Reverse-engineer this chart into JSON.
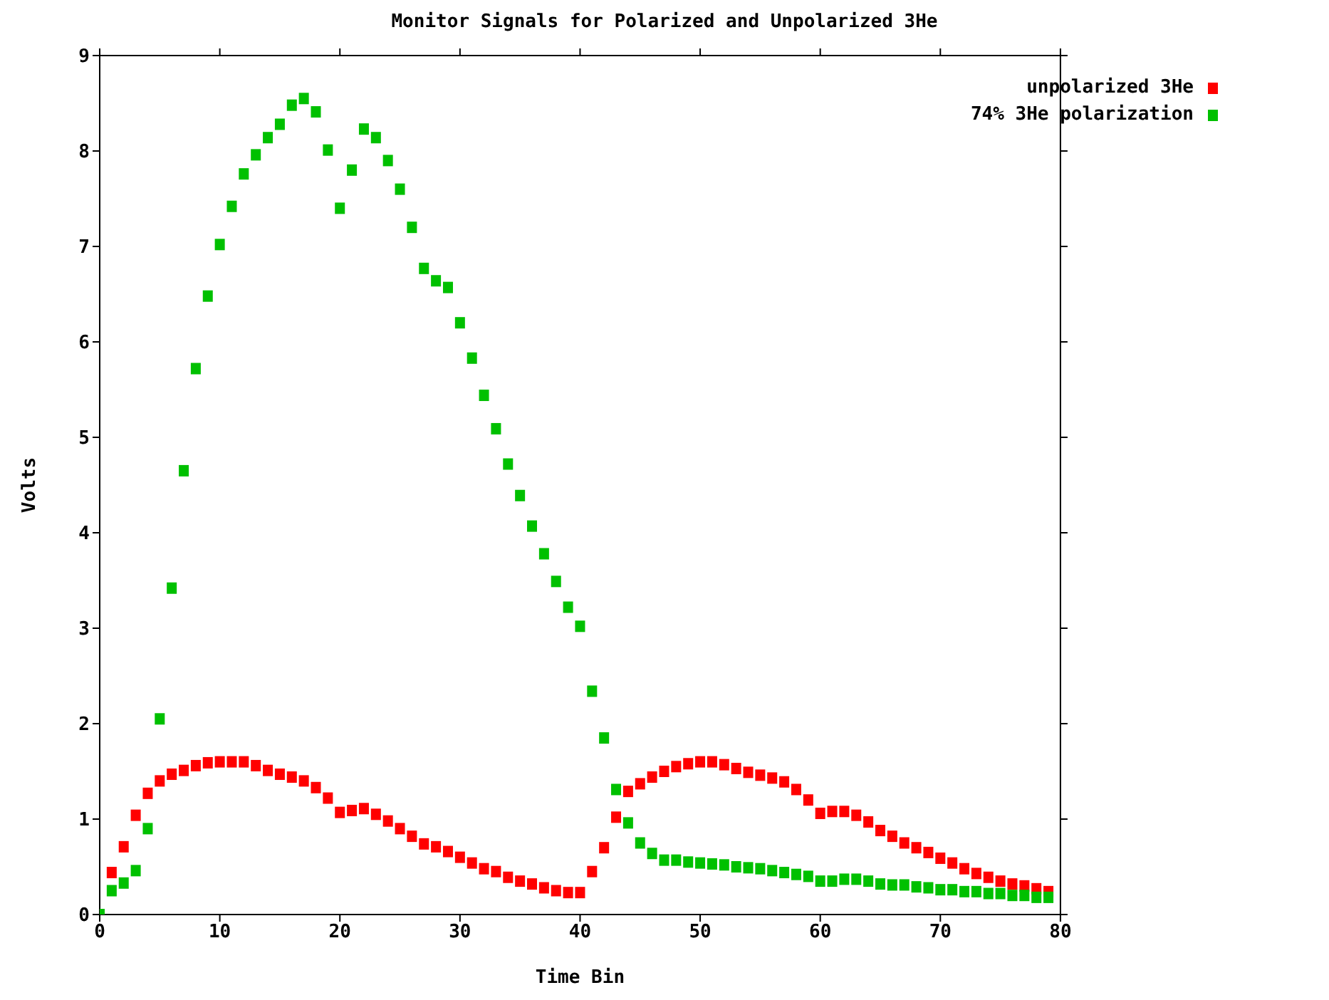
{
  "chart_data": {
    "type": "scatter",
    "title": "Monitor Signals for Polarized and Unpolarized 3He",
    "xlabel": "Time Bin",
    "ylabel": "Volts",
    "x": [
      0,
      1,
      2,
      3,
      4,
      5,
      6,
      7,
      8,
      9,
      10,
      11,
      12,
      13,
      14,
      15,
      16,
      17,
      18,
      19,
      20,
      21,
      22,
      23,
      24,
      25,
      26,
      27,
      28,
      29,
      30,
      31,
      32,
      33,
      34,
      35,
      36,
      37,
      38,
      39,
      40,
      41,
      42,
      43,
      44,
      45,
      46,
      47,
      48,
      49,
      50,
      51,
      52,
      53,
      54,
      55,
      56,
      57,
      58,
      59,
      60,
      61,
      62,
      63,
      64,
      65,
      66,
      67,
      68,
      69,
      70,
      71,
      72,
      73,
      74,
      75,
      76,
      77,
      78,
      79
    ],
    "series": [
      {
        "name": "unpolarized 3He",
        "color": "#ff0000",
        "values": [
          null,
          0.44,
          0.71,
          1.04,
          1.27,
          1.4,
          1.47,
          1.51,
          1.56,
          1.59,
          1.6,
          1.6,
          1.6,
          1.56,
          1.51,
          1.47,
          1.44,
          1.4,
          1.33,
          1.22,
          1.07,
          1.09,
          1.11,
          1.05,
          0.98,
          0.9,
          0.82,
          0.74,
          0.71,
          0.66,
          0.6,
          0.54,
          0.48,
          0.45,
          0.39,
          0.35,
          0.32,
          0.28,
          0.25,
          0.23,
          0.23,
          0.45,
          0.7,
          1.02,
          1.29,
          1.37,
          1.44,
          1.5,
          1.55,
          1.58,
          1.6,
          1.6,
          1.57,
          1.53,
          1.49,
          1.46,
          1.43,
          1.39,
          1.31,
          1.2,
          1.06,
          1.08,
          1.08,
          1.04,
          0.97,
          0.88,
          0.82,
          0.75,
          0.7,
          0.65,
          0.59,
          0.54,
          0.48,
          0.43,
          0.39,
          0.35,
          0.32,
          0.3,
          0.27,
          0.24
        ]
      },
      {
        "name": "74% 3He polarization",
        "color": "#00c000",
        "values": [
          0,
          0.25,
          0.33,
          0.46,
          0.9,
          2.05,
          3.42,
          4.65,
          5.72,
          6.48,
          7.02,
          7.42,
          7.76,
          7.96,
          8.14,
          8.28,
          8.48,
          8.55,
          8.41,
          8.01,
          7.4,
          7.8,
          8.23,
          8.14,
          7.9,
          7.6,
          7.2,
          6.77,
          6.64,
          6.57,
          6.2,
          5.83,
          5.44,
          5.09,
          4.72,
          4.39,
          4.07,
          3.78,
          3.49,
          3.22,
          3.02,
          2.34,
          1.85,
          1.31,
          0.96,
          0.75,
          0.64,
          0.57,
          0.57,
          0.55,
          0.54,
          0.53,
          0.52,
          0.5,
          0.49,
          0.48,
          0.46,
          0.44,
          0.42,
          0.4,
          0.35,
          0.35,
          0.37,
          0.37,
          0.35,
          0.32,
          0.31,
          0.31,
          0.29,
          0.28,
          0.26,
          0.26,
          0.24,
          0.24,
          0.22,
          0.22,
          0.2,
          0.2,
          0.18,
          0.18
        ]
      }
    ],
    "xlim": [
      0,
      80
    ],
    "xticks": [
      0,
      10,
      20,
      30,
      40,
      50,
      60,
      70,
      80
    ],
    "ylim": [
      0,
      9
    ],
    "yticks": [
      0,
      1,
      2,
      3,
      4,
      5,
      6,
      7,
      8,
      9
    ],
    "marker": "square",
    "legend": "top right"
  }
}
